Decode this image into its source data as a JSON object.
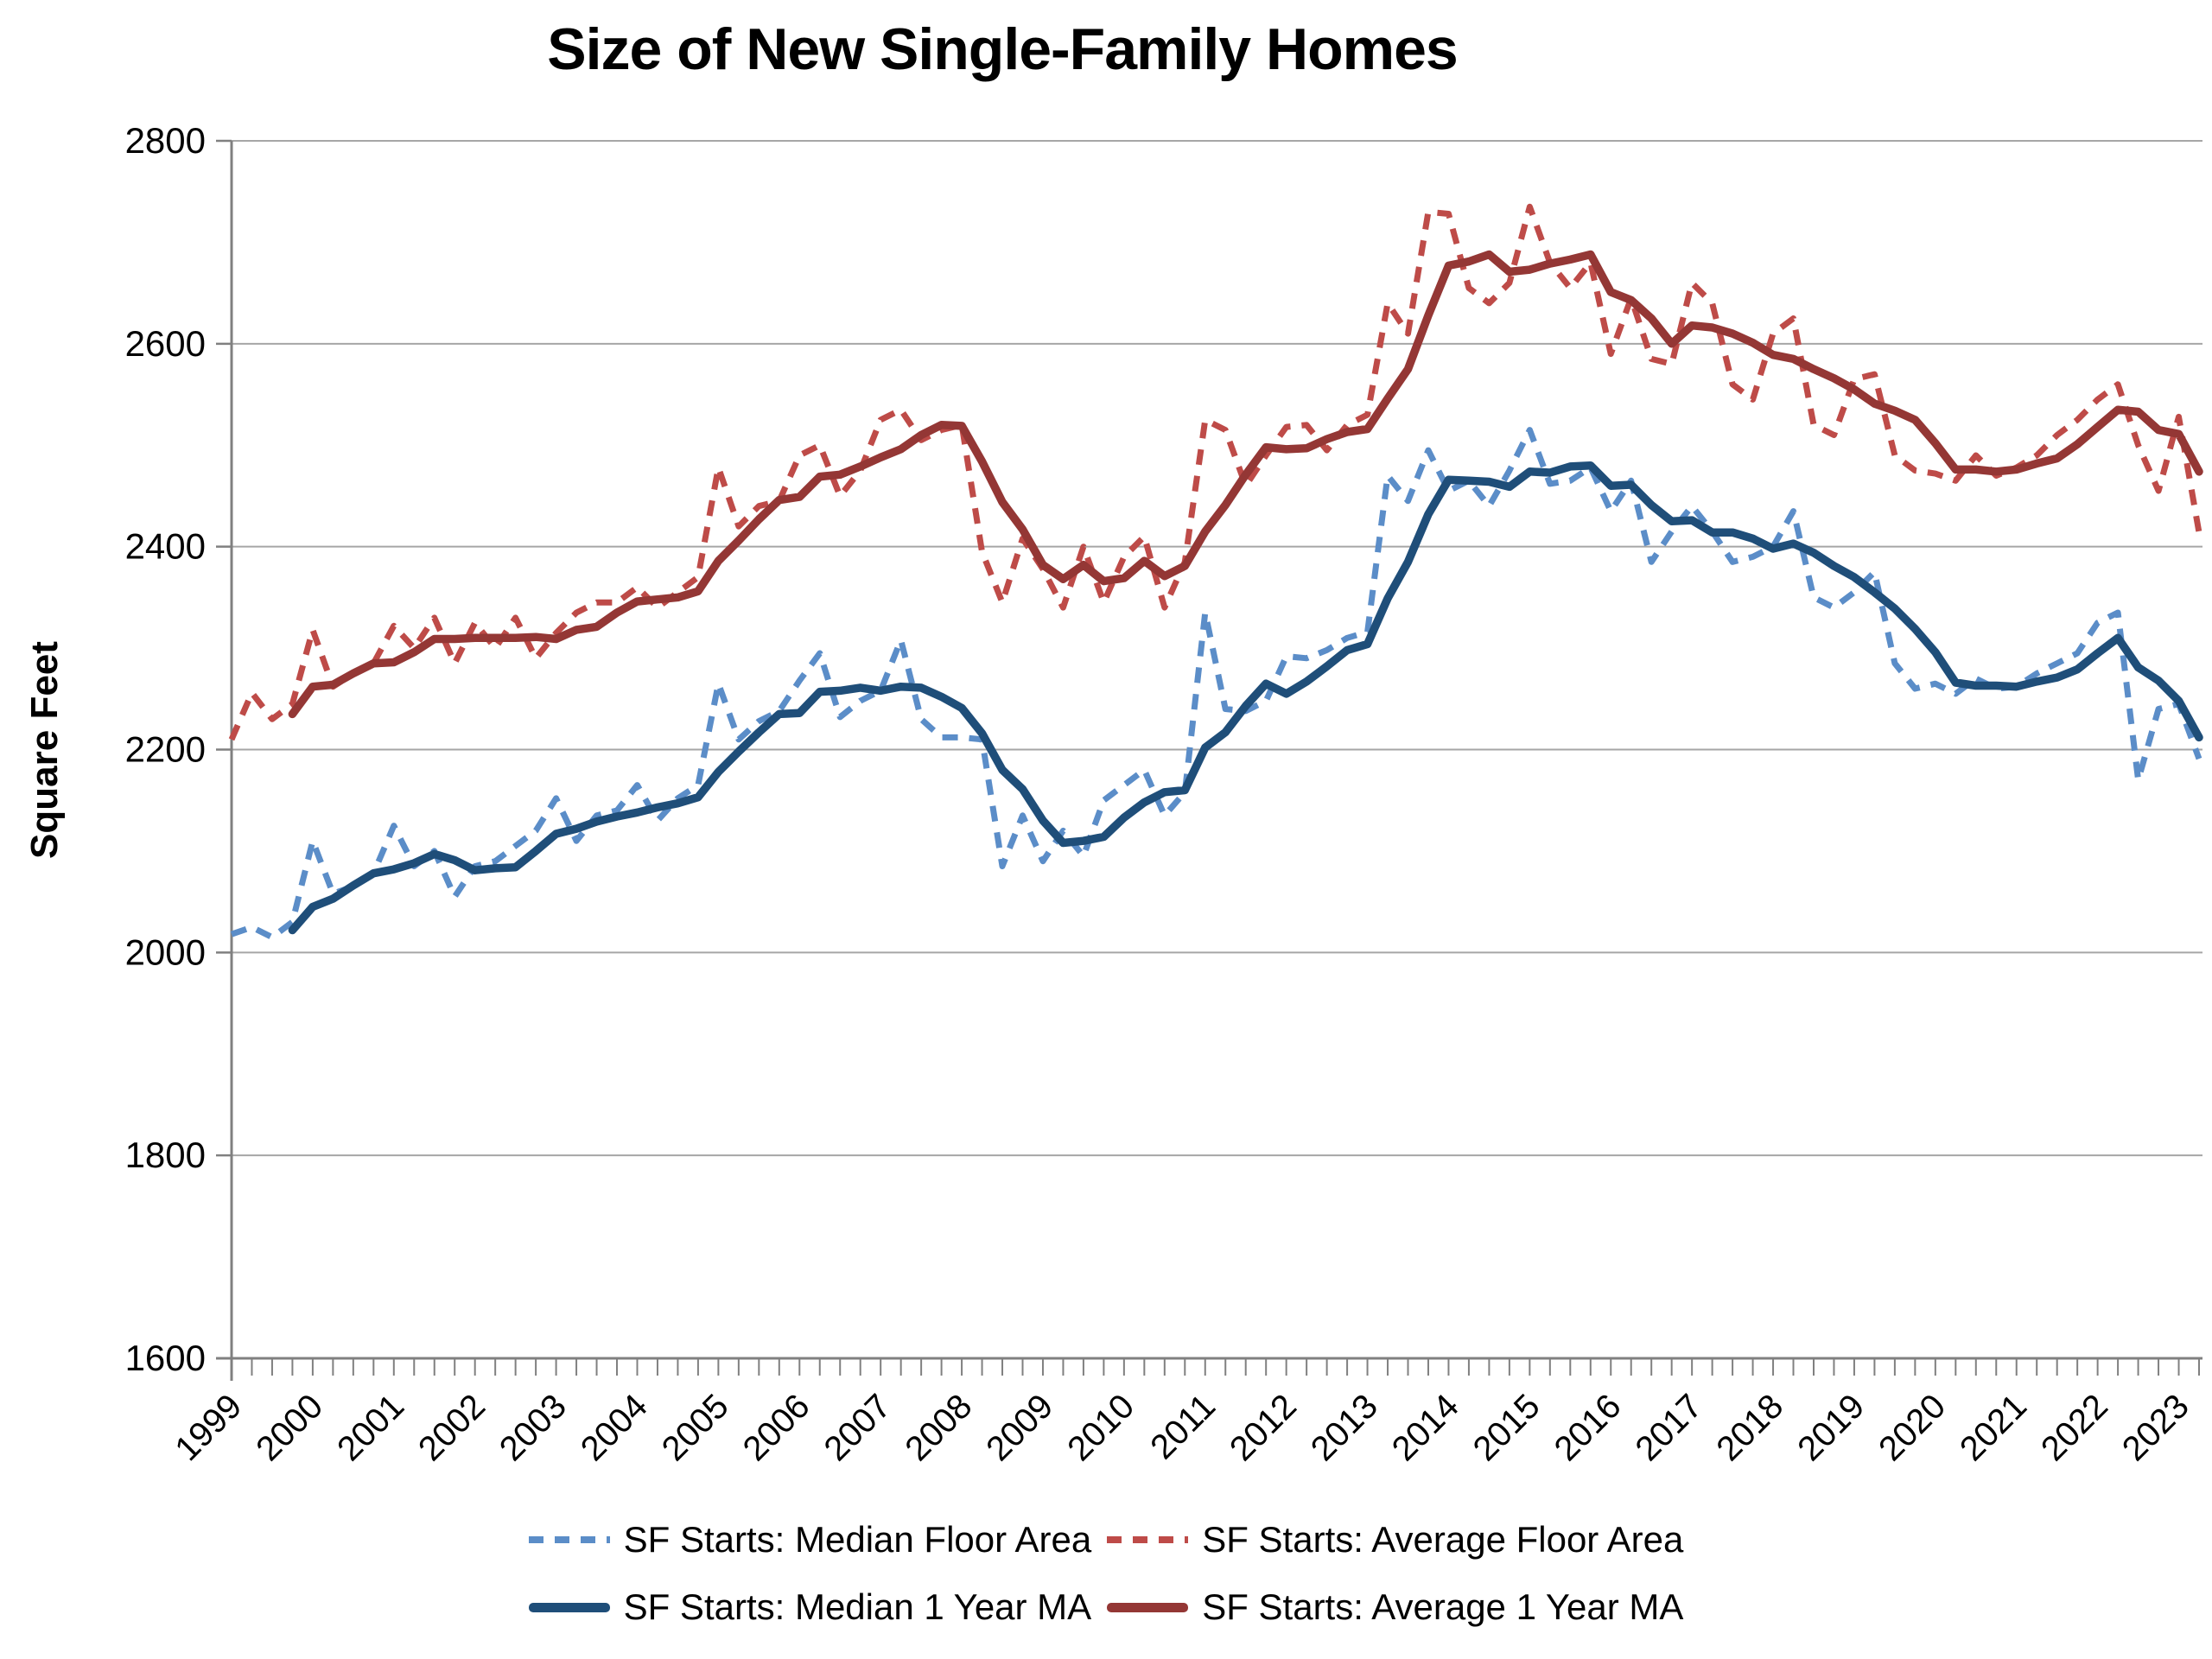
{
  "title": "Size of New Single-Family Homes",
  "chart_data": {
    "type": "line",
    "title": "Size of New Single-Family Homes",
    "xlabel": "",
    "ylabel": "Square Feet",
    "ylim": [
      1600,
      2800
    ],
    "yticks": [
      1600,
      1800,
      2000,
      2200,
      2400,
      2600,
      2800
    ],
    "grid": "horizontal",
    "legend_position": "bottom",
    "frequency": "quarterly",
    "period": "1999 Q1 - 2023 Q2",
    "n_points": 98,
    "xticklabels": [
      "1999",
      "2000",
      "2001",
      "2002",
      "2003",
      "2004",
      "2005",
      "2006",
      "2007",
      "2008",
      "2009",
      "2010",
      "2011",
      "2012",
      "2013",
      "2014",
      "2015",
      "2016",
      "2017",
      "2018",
      "2019",
      "2020",
      "2021",
      "2022",
      "2023"
    ],
    "axis_color": "#808080",
    "grid_color": "#A6A6A6",
    "text_color": "#000000",
    "series": [
      {
        "name": "SF Starts: Median Floor Area",
        "style": "dashed",
        "color": "#5B8DC8",
        "values": [
          2018,
          2025,
          2015,
          2030,
          2110,
          2058,
          2065,
          2078,
          2125,
          2085,
          2100,
          2055,
          2085,
          2090,
          2105,
          2120,
          2152,
          2110,
          2135,
          2140,
          2165,
          2130,
          2152,
          2165,
          2265,
          2210,
          2228,
          2238,
          2268,
          2295,
          2232,
          2248,
          2258,
          2308,
          2230,
          2212,
          2212,
          2210,
          2085,
          2135,
          2090,
          2120,
          2095,
          2150,
          2165,
          2180,
          2135,
          2158,
          2335,
          2240,
          2238,
          2248,
          2292,
          2290,
          2298,
          2310,
          2316,
          2470,
          2445,
          2495,
          2455,
          2465,
          2440,
          2475,
          2515,
          2462,
          2465,
          2478,
          2435,
          2465,
          2385,
          2415,
          2440,
          2415,
          2385,
          2390,
          2400,
          2435,
          2350,
          2340,
          2355,
          2375,
          2285,
          2260,
          2265,
          2255,
          2270,
          2260,
          2262,
          2275,
          2285,
          2295,
          2325,
          2335,
          2170,
          2240,
          2245,
          2191
        ]
      },
      {
        "name": "SF Starts: Average Floor Area",
        "style": "dashed",
        "color": "#BE4B48",
        "values": [
          2210,
          2256,
          2230,
          2245,
          2318,
          2262,
          2275,
          2285,
          2322,
          2300,
          2330,
          2285,
          2325,
          2300,
          2330,
          2290,
          2315,
          2335,
          2345,
          2345,
          2360,
          2340,
          2355,
          2370,
          2478,
          2420,
          2440,
          2445,
          2490,
          2500,
          2450,
          2475,
          2525,
          2535,
          2505,
          2515,
          2520,
          2395,
          2345,
          2408,
          2378,
          2340,
          2400,
          2345,
          2390,
          2410,
          2340,
          2385,
          2525,
          2515,
          2460,
          2490,
          2518,
          2520,
          2495,
          2520,
          2530,
          2640,
          2610,
          2730,
          2728,
          2655,
          2640,
          2660,
          2735,
          2680,
          2655,
          2680,
          2590,
          2645,
          2585,
          2580,
          2660,
          2640,
          2560,
          2545,
          2610,
          2625,
          2520,
          2510,
          2565,
          2570,
          2490,
          2475,
          2472,
          2465,
          2490,
          2470,
          2478,
          2490,
          2510,
          2525,
          2545,
          2560,
          2500,
          2455,
          2528,
          2414
        ]
      },
      {
        "name": "SF Starts: Median 1 Year MA",
        "style": "solid",
        "color": "#1F4E79",
        "derived": "4-quarter trailing moving average of SF Starts: Median Floor Area",
        "values": [
          null,
          null,
          null,
          2022,
          2045,
          2053,
          2066,
          2078,
          2082,
          2088,
          2097,
          2091,
          2081,
          2083,
          2084,
          2100,
          2117,
          2122,
          2129,
          2134,
          2138,
          2143,
          2147,
          2153,
          2178,
          2198,
          2217,
          2235,
          2236,
          2257,
          2258,
          2261,
          2258,
          2262,
          2261,
          2252,
          2241,
          2216,
          2180,
          2161,
          2130,
          2108,
          2110,
          2114,
          2133,
          2148,
          2158,
          2160,
          2202,
          2217,
          2243,
          2265,
          2255,
          2267,
          2282,
          2298,
          2304,
          2349,
          2385,
          2432,
          2466,
          2465,
          2464,
          2459,
          2474,
          2473,
          2479,
          2480,
          2460,
          2461,
          2441,
          2425,
          2426,
          2414,
          2414,
          2408,
          2398,
          2403,
          2394,
          2381,
          2370,
          2355,
          2339,
          2319,
          2296,
          2266,
          2263,
          2263,
          2262,
          2267,
          2271,
          2279,
          2295,
          2310,
          2281,
          2268,
          2248,
          2212
        ]
      },
      {
        "name": "SF Starts: Average 1 Year MA",
        "style": "solid",
        "color": "#943735",
        "derived": "4-quarter trailing moving average of SF Starts: Average Floor Area",
        "values": [
          null,
          null,
          null,
          2235,
          2262,
          2264,
          2275,
          2285,
          2286,
          2296,
          2309,
          2309,
          2310,
          2310,
          2310,
          2311,
          2309,
          2318,
          2321,
          2335,
          2346,
          2348,
          2350,
          2356,
          2386,
          2406,
          2427,
          2446,
          2449,
          2469,
          2471,
          2479,
          2488,
          2496,
          2510,
          2520,
          2519,
          2484,
          2444,
          2417,
          2382,
          2368,
          2382,
          2366,
          2369,
          2386,
          2371,
          2381,
          2415,
          2441,
          2471,
          2498,
          2496,
          2497,
          2506,
          2513,
          2516,
          2546,
          2575,
          2628,
          2677,
          2681,
          2688,
          2671,
          2673,
          2679,
          2683,
          2688,
          2651,
          2643,
          2625,
          2600,
          2618,
          2616,
          2610,
          2601,
          2589,
          2585,
          2575,
          2566,
          2555,
          2541,
          2534,
          2525,
          2502,
          2476,
          2476,
          2474,
          2476,
          2482,
          2487,
          2501,
          2518,
          2535,
          2533,
          2515,
          2511,
          2474
        ]
      }
    ]
  },
  "legend": {
    "row1": [
      "SF Starts: Median Floor Area",
      "SF Starts: Average Floor Area"
    ],
    "row2": [
      "SF Starts: Median 1 Year MA",
      "SF Starts: Average 1 Year MA"
    ]
  }
}
